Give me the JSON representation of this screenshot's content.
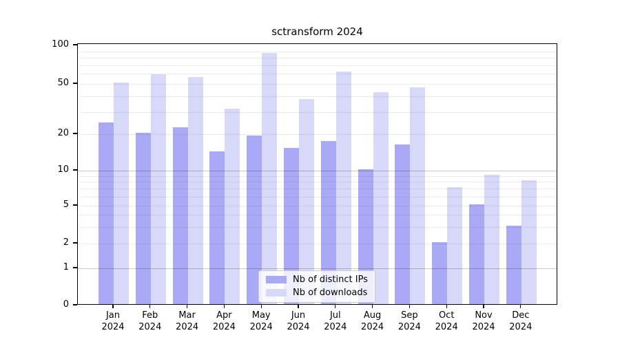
{
  "title": "sctransform 2024",
  "legend": {
    "items": [
      {
        "label": "Nb of distinct IPs",
        "color": "#a9a9f6"
      },
      {
        "label": "Nb of downloads",
        "color": "#d8d8f8"
      }
    ],
    "position": "lower center"
  },
  "chart_data": {
    "type": "bar",
    "title": "sctransform 2024",
    "categories": [
      "Jan 2024",
      "Feb 2024",
      "Mar 2024",
      "Apr 2024",
      "May 2024",
      "Jun 2024",
      "Jul 2024",
      "Aug 2024",
      "Sep 2024",
      "Oct 2024",
      "Nov 2024",
      "Dec 2024"
    ],
    "series": [
      {
        "name": "Nb of distinct IPs",
        "color": "#a9a9f6",
        "values": [
          24,
          20,
          22,
          14,
          19,
          15,
          17,
          10,
          16,
          2,
          5,
          3
        ]
      },
      {
        "name": "Nb of downloads",
        "color": "#d8d8f8",
        "values": [
          50,
          58,
          55,
          31,
          85,
          37,
          61,
          42,
          46,
          7,
          9,
          8
        ]
      }
    ],
    "xlabel": "",
    "ylabel": "",
    "yscale": "symlog",
    "ylim": [
      0,
      100
    ],
    "y_ticks": [
      0,
      1,
      2,
      5,
      10,
      20,
      50,
      100
    ],
    "minor_gridlines": [
      2,
      3,
      4,
      5,
      6,
      7,
      8,
      9,
      20,
      30,
      40,
      50,
      60,
      70,
      80,
      90
    ],
    "major_gridlines": [
      1,
      10
    ],
    "grid": true,
    "legend_position": "lower center"
  }
}
